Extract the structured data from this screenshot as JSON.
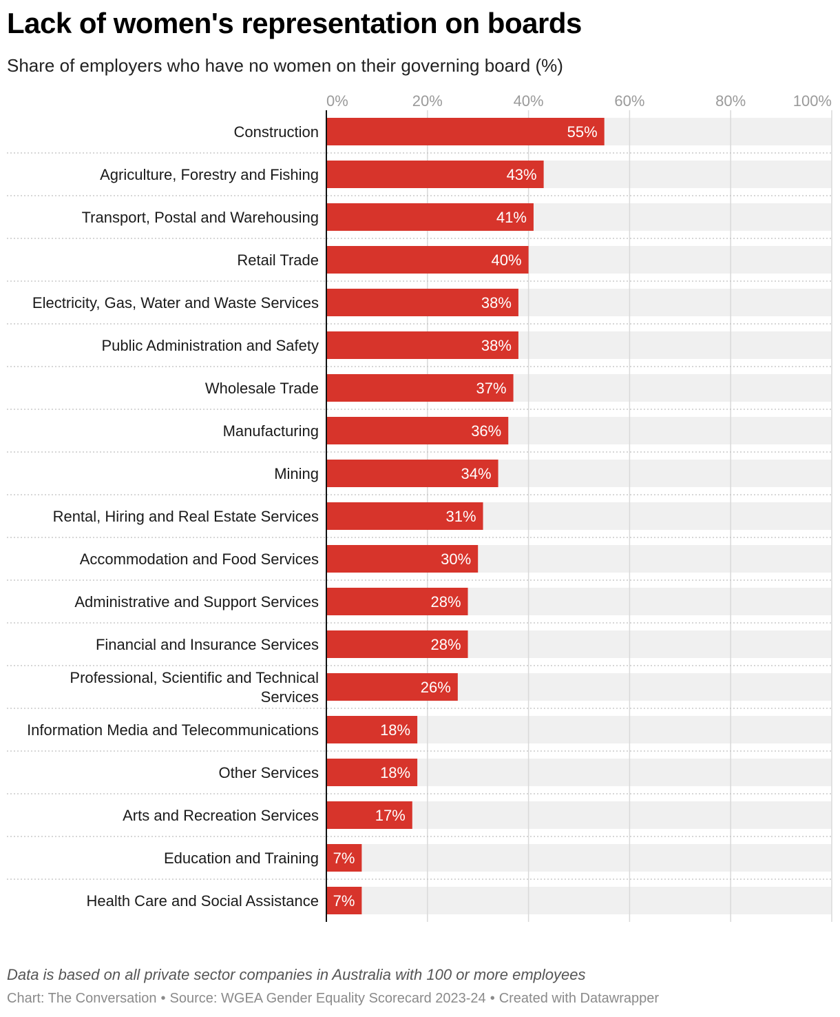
{
  "header": {
    "title": "Lack of women's representation on boards",
    "subtitle": "Share of employers who have no women on their governing board (%)"
  },
  "footer": {
    "note": "Data is based on all private sector companies in Australia with 100 or more employees",
    "credit": "Chart: The Conversation",
    "source": "Source: WGEA Gender Equality Scorecard 2023-24",
    "tool": "Created with Datawrapper"
  },
  "colors": {
    "bar": "#d7342b",
    "track": "#f0f0f0",
    "grid": "#d9d9d9",
    "tick": "#9a9a9a",
    "divider": "#c8c8c8"
  },
  "chart_data": {
    "type": "bar",
    "orientation": "horizontal",
    "xlim": [
      0,
      100
    ],
    "xticks": [
      "0%",
      "20%",
      "40%",
      "60%",
      "80%",
      "100%"
    ],
    "grid": true,
    "categories": [
      "Construction",
      "Agriculture, Forestry and Fishing",
      "Transport, Postal and Warehousing",
      "Retail Trade",
      "Electricity, Gas, Water and Waste Services",
      "Public Administration and Safety",
      "Wholesale Trade",
      "Manufacturing",
      "Mining",
      "Rental, Hiring and Real Estate Services",
      "Accommodation and Food Services",
      "Administrative and Support Services",
      "Financial and Insurance Services",
      "Professional, Scientific and Technical Services",
      "Information Media and Telecommunications",
      "Other Services",
      "Arts and Recreation Services",
      "Education and Training",
      "Health Care and Social Assistance"
    ],
    "values": [
      55,
      43,
      41,
      40,
      38,
      38,
      37,
      36,
      34,
      31,
      30,
      28,
      28,
      26,
      18,
      18,
      17,
      7,
      7
    ],
    "value_labels": [
      "55%",
      "43%",
      "41%",
      "40%",
      "38%",
      "38%",
      "37%",
      "36%",
      "34%",
      "31%",
      "30%",
      "28%",
      "28%",
      "26%",
      "18%",
      "18%",
      "17%",
      "7%",
      "7%"
    ]
  }
}
